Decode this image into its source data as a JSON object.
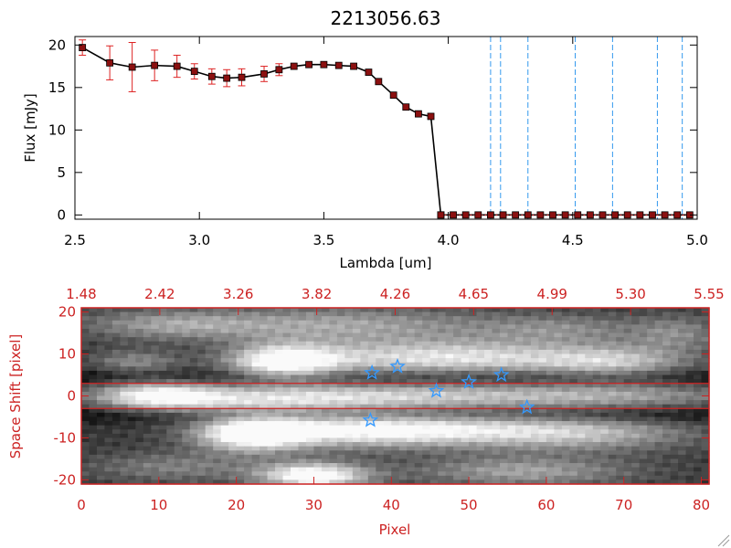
{
  "colors": {
    "axis_black": "#000000",
    "axis_red": "#cc2222",
    "error_bar": "#dd2222",
    "marker": "#8b1010",
    "vline": "#3399ee",
    "star": "#3399ff",
    "band_line": "#cc2222"
  },
  "chart_data": [
    {
      "type": "line",
      "title": "2213056.63",
      "xlabel": "Lambda [um]",
      "ylabel": "Flux [mJy]",
      "xlim": [
        2.5,
        5.0
      ],
      "ylim": [
        -0.5,
        21
      ],
      "xticks": [
        2.5,
        3.0,
        3.5,
        4.0,
        4.5,
        5.0
      ],
      "xtick_labels": [
        "2.5",
        "3.0",
        "3.5",
        "4.0",
        "4.5",
        "5.0"
      ],
      "yticks": [
        0,
        5,
        10,
        15,
        20
      ],
      "ytick_labels": [
        "0",
        "5",
        "10",
        "15",
        "20"
      ],
      "grid": false,
      "series": [
        {
          "x": [
            2.53,
            2.64,
            2.73,
            2.82,
            2.91,
            2.98,
            3.05,
            3.11,
            3.17,
            3.26,
            3.32,
            3.38,
            3.44,
            3.5,
            3.56,
            3.62,
            3.68,
            3.72,
            3.78,
            3.83,
            3.88,
            3.93,
            3.97
          ],
          "y": [
            19.7,
            17.9,
            17.4,
            17.6,
            17.5,
            16.9,
            16.3,
            16.1,
            16.2,
            16.6,
            17.1,
            17.5,
            17.7,
            17.7,
            17.6,
            17.5,
            16.8,
            15.7,
            14.1,
            12.7,
            11.9,
            11.6,
            0.0
          ],
          "yerr": [
            0.9,
            2.0,
            2.9,
            1.8,
            1.3,
            0.9,
            0.9,
            1.0,
            1.0,
            0.9,
            0.7,
            0,
            0,
            0,
            0,
            0,
            0,
            0,
            0,
            0,
            0,
            0,
            0
          ]
        },
        {
          "x": [
            3.97,
            4.02,
            4.07,
            4.12,
            4.17,
            4.22,
            4.27,
            4.32,
            4.37,
            4.42,
            4.47,
            4.52,
            4.57,
            4.62,
            4.67,
            4.72,
            4.77,
            4.82,
            4.87,
            4.92,
            4.97
          ],
          "y": [
            0,
            0,
            0,
            0,
            0,
            0,
            0,
            0,
            0,
            0,
            0,
            0,
            0,
            0,
            0,
            0,
            0,
            0,
            0,
            0,
            0
          ]
        }
      ],
      "vertical_lines_x": [
        4.17,
        4.21,
        4.32,
        4.51,
        4.66,
        4.84,
        4.94
      ]
    },
    {
      "type": "heatmap",
      "xlabel": "Pixel",
      "ylabel": "Space Shift [pixel]",
      "xlim": [
        0,
        81
      ],
      "ylim": [
        -21,
        21
      ],
      "xticks": [
        0,
        10,
        20,
        30,
        40,
        50,
        60,
        70,
        80
      ],
      "xtick_labels": [
        "0",
        "10",
        "20",
        "30",
        "40",
        "50",
        "60",
        "70",
        "80"
      ],
      "yticks": [
        -20,
        -10,
        0,
        10,
        20
      ],
      "ytick_labels": [
        "-20",
        "-10",
        "0",
        "10",
        "20"
      ],
      "top_tick_labels": [
        "1.48",
        "2.42",
        "3.26",
        "3.82",
        "4.26",
        "4.65",
        "4.99",
        "5.30",
        "5.55"
      ],
      "horizontal_lines_y": [
        3,
        -3
      ],
      "stars": [
        {
          "x": 37.5,
          "y": 5.5
        },
        {
          "x": 40.8,
          "y": 7.0
        },
        {
          "x": 45.8,
          "y": 1.2
        },
        {
          "x": 50.0,
          "y": 3.3
        },
        {
          "x": 54.2,
          "y": 5.0
        },
        {
          "x": 57.5,
          "y": -2.7
        },
        {
          "x": 37.3,
          "y": -5.8
        }
      ],
      "blobs": [
        {
          "x": 10,
          "y": 0,
          "sx": 6,
          "sy": 2.6,
          "a": 0.85
        },
        {
          "x": 24,
          "y": -1,
          "sx": 9,
          "sy": 2.4,
          "a": 0.5
        },
        {
          "x": 38,
          "y": 0,
          "sx": 10,
          "sy": 2.2,
          "a": 0.4
        },
        {
          "x": 55,
          "y": 0,
          "sx": 12,
          "sy": 2.2,
          "a": 0.35
        },
        {
          "x": 72,
          "y": 0,
          "sx": 12,
          "sy": 2.2,
          "a": 0.3
        },
        {
          "x": 22,
          "y": -9,
          "sx": 5,
          "sy": 3.0,
          "a": 0.9
        },
        {
          "x": 34,
          "y": -8,
          "sx": 10,
          "sy": 3.0,
          "a": 0.65
        },
        {
          "x": 50,
          "y": -8,
          "sx": 12,
          "sy": 3.0,
          "a": 0.55
        },
        {
          "x": 66,
          "y": -9,
          "sx": 10,
          "sy": 3.0,
          "a": 0.4
        },
        {
          "x": 26,
          "y": 8,
          "sx": 5,
          "sy": 3.0,
          "a": 0.9
        },
        {
          "x": 40,
          "y": 9,
          "sx": 10,
          "sy": 3.2,
          "a": 0.55
        },
        {
          "x": 55,
          "y": 9,
          "sx": 9,
          "sy": 3.0,
          "a": 0.45
        },
        {
          "x": 69,
          "y": 8,
          "sx": 7,
          "sy": 3.0,
          "a": 0.55
        },
        {
          "x": 7,
          "y": 8,
          "sx": 4,
          "sy": 2.0,
          "a": 0.35
        },
        {
          "x": 11,
          "y": 17,
          "sx": 8,
          "sy": 2.5,
          "a": 0.35
        },
        {
          "x": 33,
          "y": 17,
          "sx": 14,
          "sy": 3.0,
          "a": 0.45
        },
        {
          "x": 62,
          "y": 16,
          "sx": 8,
          "sy": 2.5,
          "a": 0.3
        },
        {
          "x": 30,
          "y": -19,
          "sx": 5,
          "sy": 2.2,
          "a": 0.95
        },
        {
          "x": 57,
          "y": -18,
          "sx": 10,
          "sy": 2.5,
          "a": 0.45
        },
        {
          "x": 12,
          "y": -17,
          "sx": 8,
          "sy": 2.5,
          "a": 0.3
        },
        {
          "x": 77,
          "y": 15,
          "sx": 4,
          "sy": 3.0,
          "a": 0.3
        }
      ]
    }
  ]
}
